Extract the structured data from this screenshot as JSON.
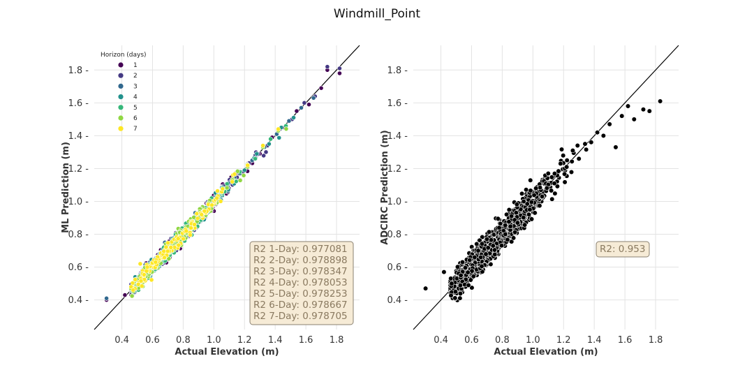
{
  "figure": {
    "title": "Windmill_Point"
  },
  "chart_data": [
    {
      "type": "scatter",
      "xlabel": "Actual Elevation (m)",
      "ylabel": "ML Prediction (m)",
      "xlim": [
        0.22,
        1.95
      ],
      "ylim": [
        0.22,
        1.95
      ],
      "xticks": [
        0.4,
        0.6,
        0.8,
        1.0,
        1.2,
        1.4,
        1.6,
        1.8
      ],
      "yticks": [
        0.4,
        0.6,
        0.8,
        1.0,
        1.2,
        1.4,
        1.6,
        1.8
      ],
      "grid": true,
      "reference_line": "y = x",
      "legend": {
        "title": "Horizon (days)",
        "placement": "upper-left",
        "entries": [
          {
            "label": "1",
            "color": "#440154"
          },
          {
            "label": "2",
            "color": "#443983"
          },
          {
            "label": "3",
            "color": "#31688e"
          },
          {
            "label": "4",
            "color": "#21918c"
          },
          {
            "label": "5",
            "color": "#35b779"
          },
          {
            "label": "6",
            "color": "#90d743"
          },
          {
            "label": "7",
            "color": "#fde725"
          }
        ]
      },
      "series": [
        {
          "name": "1",
          "color": "#440154",
          "x": [
            0.3,
            0.42,
            0.51,
            0.58,
            0.66,
            0.74,
            0.82,
            0.9,
            0.98,
            1.06,
            1.14,
            1.22,
            1.3,
            1.38,
            1.46,
            1.54,
            1.62,
            1.7,
            1.74,
            1.82
          ],
          "y": [
            0.4,
            0.43,
            0.52,
            0.58,
            0.66,
            0.72,
            0.83,
            0.91,
            0.97,
            1.06,
            1.13,
            1.23,
            1.29,
            1.39,
            1.45,
            1.55,
            1.59,
            1.69,
            1.8,
            1.78
          ]
        },
        {
          "name": "2",
          "color": "#443983",
          "x": [
            0.3,
            0.48,
            0.55,
            0.63,
            0.71,
            0.79,
            0.87,
            0.95,
            1.03,
            1.11,
            1.19,
            1.27,
            1.35,
            1.43,
            1.51,
            1.59,
            1.66,
            1.74,
            1.82
          ],
          "y": [
            0.41,
            0.5,
            0.55,
            0.64,
            0.7,
            0.8,
            0.86,
            0.96,
            1.02,
            1.12,
            1.18,
            1.28,
            1.34,
            1.44,
            1.5,
            1.6,
            1.64,
            1.82,
            1.81
          ]
        },
        {
          "name": "3",
          "color": "#31688e",
          "x": [
            0.3,
            0.53,
            0.61,
            0.69,
            0.77,
            0.85,
            0.93,
            1.01,
            1.09,
            1.17,
            1.25,
            1.33,
            1.41,
            1.49,
            1.57,
            1.65
          ],
          "y": [
            0.41,
            0.53,
            0.61,
            0.69,
            0.77,
            0.85,
            0.93,
            1.01,
            1.09,
            1.17,
            1.25,
            1.33,
            1.41,
            1.49,
            1.57,
            1.63
          ]
        },
        {
          "name": "4",
          "color": "#21918c",
          "x": [
            0.56,
            0.64,
            0.72,
            0.8,
            0.88,
            0.96,
            1.04,
            1.12,
            1.2,
            1.28,
            1.36,
            1.44,
            1.52
          ],
          "y": [
            0.56,
            0.65,
            0.71,
            0.81,
            0.87,
            0.97,
            1.03,
            1.13,
            1.19,
            1.29,
            1.35,
            1.45,
            1.51
          ]
        },
        {
          "name": "5",
          "color": "#35b779",
          "x": [
            0.57,
            0.67,
            0.77,
            0.87,
            0.97,
            1.07,
            1.17,
            1.27,
            1.37,
            1.47
          ],
          "y": [
            0.58,
            0.66,
            0.78,
            0.86,
            0.98,
            1.06,
            1.18,
            1.26,
            1.38,
            1.46
          ]
        },
        {
          "name": "6",
          "color": "#90d743",
          "x": [
            0.62,
            0.72,
            0.82,
            0.92,
            1.02,
            1.12,
            1.22,
            1.32,
            1.42
          ],
          "y": [
            0.62,
            0.73,
            0.81,
            0.93,
            1.01,
            1.13,
            1.21,
            1.33,
            1.43
          ]
        },
        {
          "name": "7",
          "color": "#fde725",
          "x": [
            0.52,
            0.62,
            0.72,
            0.82,
            0.92,
            1.02,
            1.12,
            1.22,
            1.32,
            1.42
          ],
          "y": [
            0.62,
            0.63,
            0.72,
            0.82,
            0.92,
            1.02,
            1.12,
            1.22,
            1.34,
            1.44
          ]
        }
      ],
      "annotation": [
        "R2 1-Day: 0.977081",
        "R2 2-Day: 0.978898",
        "R2 3-Day: 0.978347",
        "R2 4-Day: 0.978053",
        "R2 5-Day: 0.978253",
        "R2 6-Day: 0.978667",
        "R2 7-Day: 0.978705"
      ],
      "annotation_box_color": "#f6ebd6"
    },
    {
      "type": "scatter",
      "xlabel": "Actual Elevation (m)",
      "ylabel": "ADCIRC Prediction (m)",
      "xlim": [
        0.22,
        1.95
      ],
      "ylim": [
        0.22,
        1.95
      ],
      "xticks": [
        0.4,
        0.6,
        0.8,
        1.0,
        1.2,
        1.4,
        1.6,
        1.8
      ],
      "yticks": [
        0.4,
        0.6,
        0.8,
        1.0,
        1.2,
        1.4,
        1.6,
        1.8
      ],
      "grid": true,
      "reference_line": "y = x",
      "series": [
        {
          "color": "#000000",
          "x": [
            0.3,
            0.42,
            0.47,
            0.53,
            0.58,
            0.62,
            0.66,
            0.7,
            0.74,
            0.78,
            0.82,
            0.86,
            0.9,
            0.94,
            0.98,
            1.02,
            1.06,
            1.1,
            1.14,
            1.18,
            1.22,
            1.26,
            1.3,
            1.34,
            1.38,
            1.42,
            1.46,
            1.5,
            1.54,
            1.58,
            1.62,
            1.66,
            1.72,
            1.76,
            1.83
          ],
          "y": [
            0.47,
            0.57,
            0.5,
            0.55,
            0.49,
            0.66,
            0.66,
            0.77,
            0.73,
            0.84,
            0.8,
            0.91,
            0.87,
            1.0,
            0.95,
            1.08,
            1.03,
            1.17,
            1.11,
            1.23,
            1.21,
            1.31,
            1.26,
            1.35,
            1.36,
            1.42,
            1.4,
            1.47,
            1.33,
            1.52,
            1.58,
            1.5,
            1.56,
            1.55,
            1.61
          ]
        }
      ],
      "annotation": [
        "R2: 0.953"
      ],
      "annotation_box_color": "#f6ebd6"
    }
  ]
}
